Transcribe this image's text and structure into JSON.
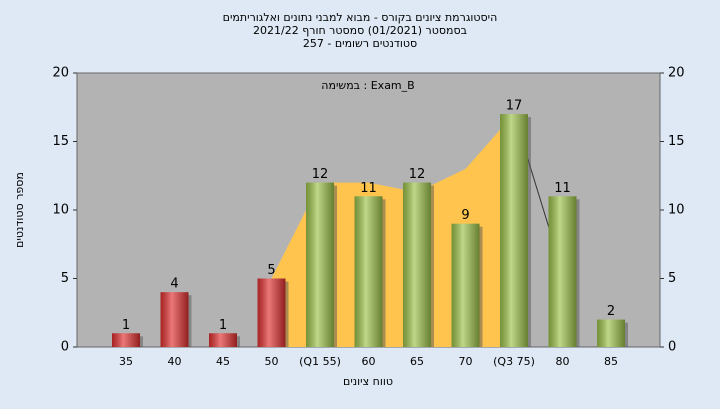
{
  "chart_data": {
    "type": "bar",
    "title": "היסטוגרמת ציונים בקורס - מבוא למבני נתונים ואלגוריתמים",
    "subtitle": "בסמסטר  (01/2021)  סמסטר חורף 2021/22",
    "subtitle2": "סטודנטים רשומים - 257",
    "annotation": "במשימה : Exam_B",
    "x_label": "טווח ציונים",
    "y_label": "מספר סטודנטים",
    "categories": [
      "35",
      "40",
      "45",
      "50",
      "(Q1 55)",
      "60",
      "65",
      "70",
      "(Q3 75)",
      "80",
      "85"
    ],
    "values": [
      1,
      4,
      1,
      5,
      12,
      11,
      12,
      9,
      17,
      11,
      2
    ],
    "colors": [
      "#e03030",
      "#e03030",
      "#e03030",
      "#e03030",
      "#9cc24a",
      "#9cc24a",
      "#9cc24a",
      "#9cc24a",
      "#9cc24a",
      "#9cc24a",
      "#9cc24a"
    ],
    "area_values": [
      null,
      null,
      null,
      5,
      12,
      12,
      11.3,
      13,
      17,
      null,
      null
    ],
    "area_color": "#ffc44d",
    "line_values": [
      null,
      null,
      null,
      null,
      null,
      null,
      null,
      null,
      17,
      5.5,
      null
    ],
    "line_color": "#333333",
    "ylim": [
      0,
      20
    ],
    "yticks": [
      0,
      5,
      10,
      15,
      20
    ],
    "y2lim": [
      0,
      20
    ],
    "y2ticks": [
      0,
      5,
      10,
      15,
      20
    ],
    "grid": false
  }
}
